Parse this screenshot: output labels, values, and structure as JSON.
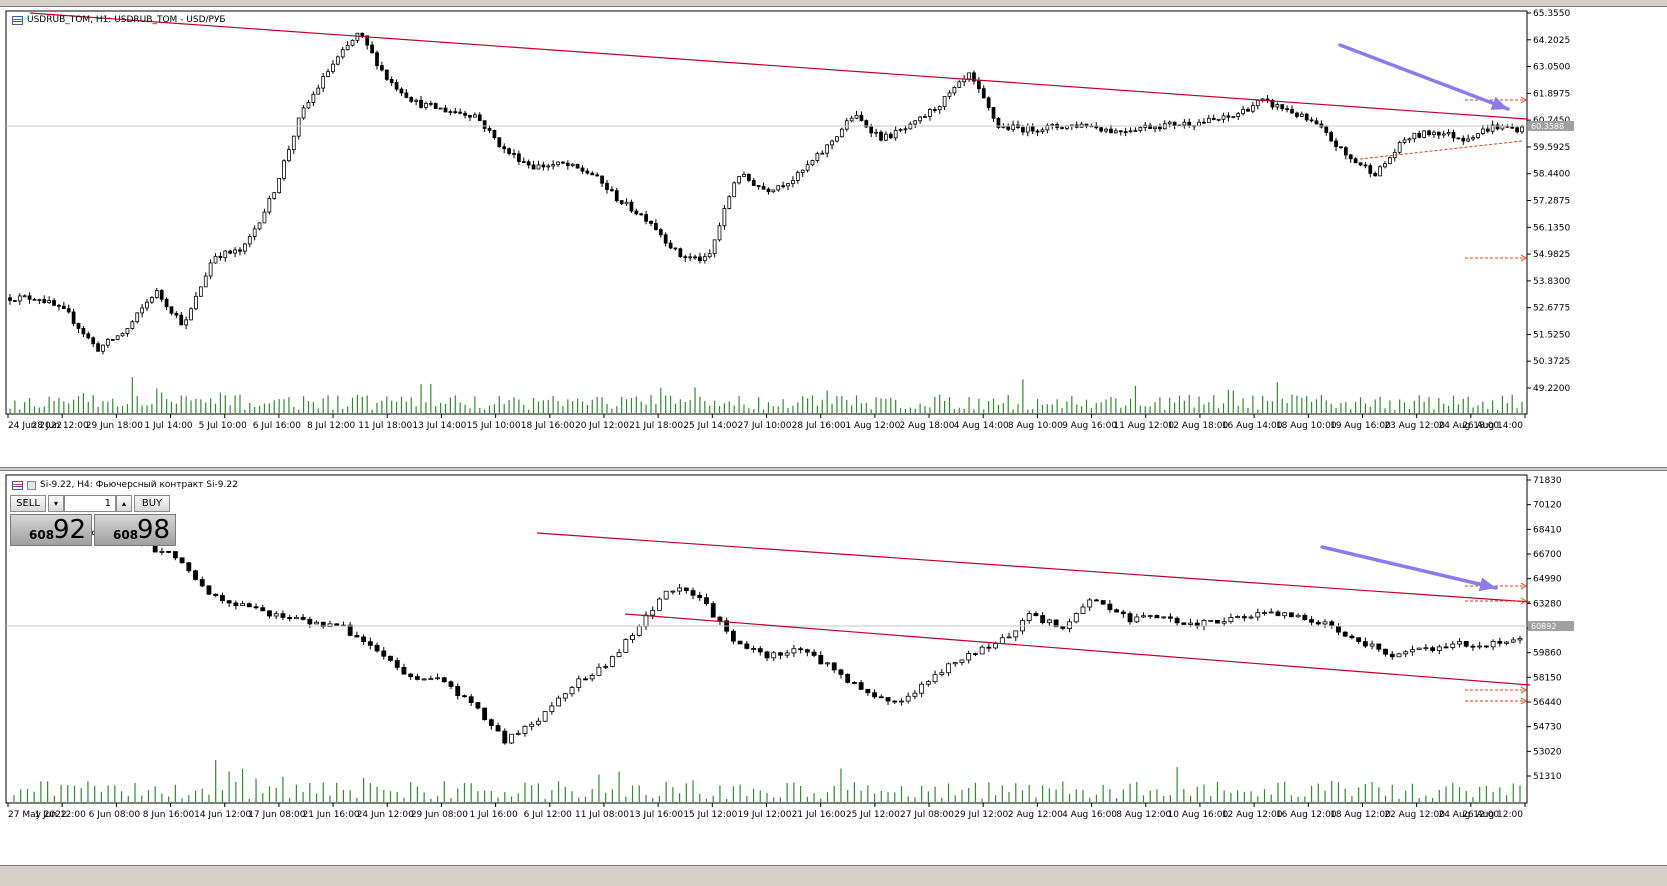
{
  "top_window": {
    "title": "USDRUB_TOM, H1:  USDRUB_TOM - USD/РУБ",
    "icon": "chart-window-icon",
    "price_ticks": [
      "65.3550",
      "64.2025",
      "63.0500",
      "61.8975",
      "60.7450",
      "59.5925",
      "58.4400",
      "57.2875",
      "56.1350",
      "54.9825",
      "53.8300",
      "52.6775",
      "51.5250",
      "50.3725",
      "49.2200"
    ],
    "time_ticks": [
      "24 Jun 2022",
      "28 Jun 12:00",
      "29 Jun 18:00",
      "1 Jul 14:00",
      "5 Jul 10:00",
      "6 Jul 16:00",
      "8 Jul 12:00",
      "11 Jul 18:00",
      "13 Jul 14:00",
      "15 Jul 10:00",
      "18 Jul 16:00",
      "20 Jul 12:00",
      "21 Jul 18:00",
      "25 Jul 14:00",
      "27 Jul 10:00",
      "28 Jul 16:00",
      "1 Aug 12:00",
      "2 Aug 18:00",
      "4 Aug 14:00",
      "8 Aug 10:00",
      "9 Aug 16:00",
      "11 Aug 12:00",
      "12 Aug 18:00",
      "16 Aug 14:00",
      "18 Aug 10:00",
      "19 Aug 16:00",
      "23 Aug 12:00",
      "24 Aug 18:00",
      "26 Aug 14:00"
    ],
    "current_price_tag": "60.3588",
    "colors": {
      "trendline": "#c0002a",
      "arrow": "#8a7cf0",
      "volume": "#2e8b2e",
      "candle": "#000000",
      "tag": "#a0a0a0",
      "marker": "#e04010"
    }
  },
  "bottom_window": {
    "title": "Si-9.22, H4:  Фьючерсный контракт Si-9.22",
    "icon": "chart-window-icon",
    "trade_panel": {
      "sell_label": "SELL",
      "buy_label": "BUY",
      "lot_value": "1",
      "sell_price_small": "608",
      "sell_price_big": "92",
      "buy_price_small": "608",
      "buy_price_big": "98"
    },
    "price_ticks": [
      "71830",
      "70120",
      "68410",
      "66700",
      "64990",
      "63280",
      "61570",
      "59860",
      "58150",
      "56440",
      "54730",
      "53020",
      "51310"
    ],
    "time_ticks": [
      "27 May 2022",
      "1 Jun 12:00",
      "6 Jun 08:00",
      "8 Jun 16:00",
      "14 Jun 12:00",
      "17 Jun 08:00",
      "21 Jun 16:00",
      "24 Jun 12:00",
      "29 Jun 08:00",
      "1 Jul 16:00",
      "6 Jul 12:00",
      "11 Jul 08:00",
      "13 Jul 16:00",
      "15 Jul 12:00",
      "19 Jul 12:00",
      "21 Jul 16:00",
      "25 Jul 12:00",
      "27 Jul 08:00",
      "29 Jul 12:00",
      "2 Aug 12:00",
      "4 Aug 16:00",
      "8 Aug 12:00",
      "10 Aug 16:00",
      "12 Aug 12:00",
      "16 Aug 12:00",
      "18 Aug 12:00",
      "22 Aug 12:00",
      "24 Aug 12:00",
      "26 Aug 12:00"
    ],
    "current_price_tag": "60892",
    "colors": {
      "trendline": "#c0002a",
      "arrow": "#8a7cf0",
      "volume": "#2e8b2e",
      "candle": "#000000",
      "tag": "#a0a0a0",
      "marker": "#e04010"
    }
  },
  "chart_data": [
    {
      "type": "candlestick",
      "title": "USDRUB_TOM, H1:  USDRUB_TOM - USD/РУБ",
      "ylim": [
        49.22,
        65.355
      ],
      "price_path": [
        53.2,
        53.2,
        52.5,
        51.0,
        51.8,
        53.5,
        52.0,
        55.0,
        55.2,
        57.5,
        61.0,
        63.0,
        64.5,
        62.5,
        61.5,
        61.2,
        61.0,
        59.5,
        58.8,
        58.9,
        58.5,
        57.3,
        56.5,
        55.0,
        54.8,
        58.5,
        57.8,
        58.3,
        59.5,
        61.0,
        60.0,
        60.5,
        61.5,
        62.7,
        60.5,
        60.4,
        60.5,
        60.6,
        60.3,
        60.5,
        60.6,
        60.7,
        60.9,
        61.6,
        61.2,
        60.5,
        59.2,
        58.5,
        60.0,
        60.3,
        60.0,
        60.5,
        60.4
      ]
    },
    {
      "type": "candlestick",
      "title": "Si-9.22, H4:  Фьючерсный контракт Si-9.22",
      "ylim": [
        51310,
        71830
      ],
      "price_path": [
        68900,
        68300,
        68100,
        68200,
        67200,
        66600,
        64000,
        63200,
        62600,
        62100,
        61800,
        60300,
        58400,
        58200,
        56500,
        54000,
        55500,
        57800,
        59000,
        61500,
        64500,
        63700,
        60700,
        59800,
        60300,
        59000,
        57300,
        56600,
        58200,
        59800,
        60500,
        62500,
        61800,
        63800,
        62300,
        62400,
        61900,
        62300,
        62600,
        62600,
        62000,
        61000,
        59800,
        60200,
        60600,
        60600,
        60800
      ]
    }
  ]
}
